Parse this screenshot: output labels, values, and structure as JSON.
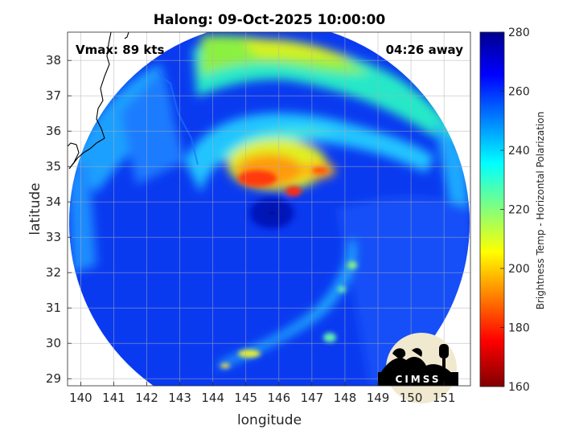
{
  "title": "Halong: 09-Oct-2025 10:00:00",
  "annotations": {
    "vmax": "Vmax: 89 kts",
    "away": "04:26 away"
  },
  "axes": {
    "xlabel": "longitude",
    "ylabel": "latitude",
    "xlim": [
      139.6,
      151.8
    ],
    "ylim": [
      28.8,
      38.8
    ],
    "xticks": [
      "140",
      "141",
      "142",
      "143",
      "144",
      "145",
      "146",
      "147",
      "148",
      "149",
      "150",
      "151"
    ],
    "yticks": [
      "29",
      "30",
      "31",
      "32",
      "33",
      "34",
      "35",
      "36",
      "37",
      "38"
    ]
  },
  "colorbar": {
    "label": "Brightness Temp - Horizontal Polarization",
    "range": [
      160,
      280
    ],
    "ticks": [
      "280",
      "260",
      "240",
      "220",
      "200",
      "180",
      "160"
    ],
    "colormap": "jet"
  },
  "logo": {
    "text": "CIMSS"
  },
  "colors": {
    "frame": "#262626",
    "grid": "#d9d9d9",
    "background": "#ffffff"
  }
}
